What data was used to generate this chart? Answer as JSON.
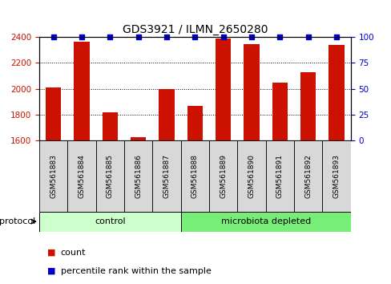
{
  "title": "GDS3921 / ILMN_2650280",
  "samples": [
    "GSM561883",
    "GSM561884",
    "GSM561885",
    "GSM561886",
    "GSM561887",
    "GSM561888",
    "GSM561889",
    "GSM561890",
    "GSM561891",
    "GSM561892",
    "GSM561893"
  ],
  "counts": [
    2007,
    2360,
    1820,
    1625,
    1997,
    1868,
    2390,
    2345,
    2047,
    2130,
    2340
  ],
  "percentile_ranks": [
    100,
    100,
    100,
    100,
    100,
    100,
    100,
    100,
    100,
    100,
    100
  ],
  "protocol_groups": [
    {
      "label": "control",
      "start": 0,
      "end": 5,
      "color": "#ccffcc"
    },
    {
      "label": "microbiota depleted",
      "start": 5,
      "end": 11,
      "color": "#77ee77"
    }
  ],
  "ylim_left": [
    1600,
    2400
  ],
  "ylim_right": [
    0,
    100
  ],
  "yticks_left": [
    1600,
    1800,
    2000,
    2200,
    2400
  ],
  "yticks_right": [
    0,
    25,
    50,
    75,
    100
  ],
  "bar_color": "#cc1100",
  "dot_color": "#0000cc",
  "bar_width": 0.55,
  "background_color": "#ffffff",
  "plot_bg_color": "#ffffff",
  "grid_color": "#000000",
  "sample_box_color": "#d8d8d8",
  "legend_count_color": "#cc1100",
  "legend_rank_color": "#0000cc",
  "title_fontsize": 10,
  "tick_fontsize": 7.5,
  "label_fontsize": 8
}
